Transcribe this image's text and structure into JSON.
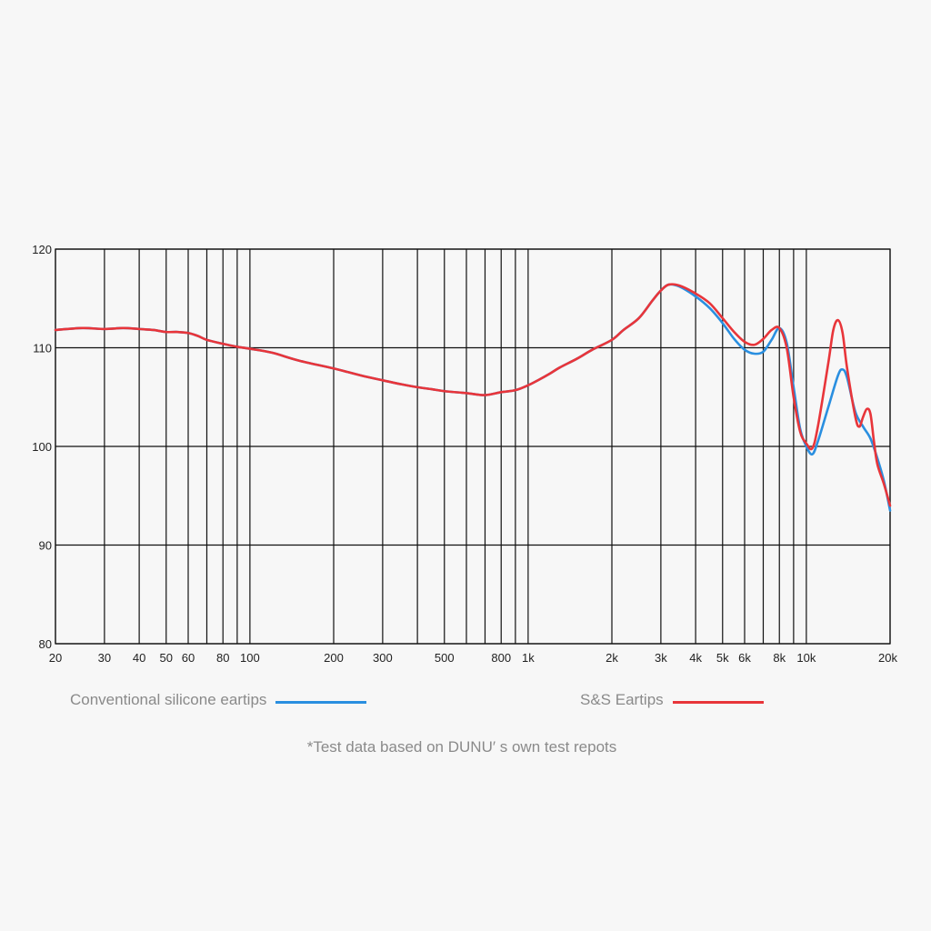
{
  "chart_data": {
    "type": "line",
    "title": "",
    "xlabel": "",
    "ylabel": "",
    "x_scale": "log",
    "xlim": [
      20,
      20000
    ],
    "ylim": [
      80,
      120
    ],
    "grid": true,
    "y_ticks": [
      80,
      90,
      100,
      110,
      120
    ],
    "y_tick_labels": [
      "80",
      "90",
      "100",
      "110",
      "120"
    ],
    "x_gridlines": [
      20,
      30,
      40,
      50,
      60,
      70,
      80,
      90,
      100,
      200,
      300,
      400,
      500,
      600,
      700,
      800,
      900,
      1000,
      2000,
      3000,
      4000,
      5000,
      6000,
      7000,
      8000,
      9000,
      10000,
      20000
    ],
    "x_ticks": [
      {
        "value": 20,
        "label": "20"
      },
      {
        "value": 30,
        "label": "30"
      },
      {
        "value": 40,
        "label": "40"
      },
      {
        "value": 50,
        "label": "50"
      },
      {
        "value": 60,
        "label": "60"
      },
      {
        "value": 80,
        "label": "80"
      },
      {
        "value": 100,
        "label": "100"
      },
      {
        "value": 200,
        "label": "200"
      },
      {
        "value": 300,
        "label": "300"
      },
      {
        "value": 500,
        "label": "500"
      },
      {
        "value": 800,
        "label": "800"
      },
      {
        "value": 1000,
        "label": "1k"
      },
      {
        "value": 2000,
        "label": "2k"
      },
      {
        "value": 3000,
        "label": "3k"
      },
      {
        "value": 4000,
        "label": "4k"
      },
      {
        "value": 5000,
        "label": "5k"
      },
      {
        "value": 6000,
        "label": "6k"
      },
      {
        "value": 8000,
        "label": "8k"
      },
      {
        "value": 10000,
        "label": "10k"
      },
      {
        "value": 20000,
        "label": "20k"
      }
    ],
    "legend_placement": "bottom",
    "series": [
      {
        "name": "Conventional silicone eartips",
        "color": "#2a8fe0",
        "points": [
          [
            20,
            111.8
          ],
          [
            25,
            112.0
          ],
          [
            30,
            111.9
          ],
          [
            35,
            112.0
          ],
          [
            40,
            111.9
          ],
          [
            45,
            111.8
          ],
          [
            50,
            111.6
          ],
          [
            55,
            111.6
          ],
          [
            60,
            111.5
          ],
          [
            65,
            111.2
          ],
          [
            70,
            110.8
          ],
          [
            80,
            110.4
          ],
          [
            90,
            110.1
          ],
          [
            100,
            109.9
          ],
          [
            120,
            109.5
          ],
          [
            150,
            108.7
          ],
          [
            200,
            107.9
          ],
          [
            250,
            107.2
          ],
          [
            300,
            106.7
          ],
          [
            350,
            106.3
          ],
          [
            400,
            106.0
          ],
          [
            450,
            105.8
          ],
          [
            500,
            105.6
          ],
          [
            600,
            105.4
          ],
          [
            700,
            105.2
          ],
          [
            800,
            105.5
          ],
          [
            900,
            105.7
          ],
          [
            1000,
            106.2
          ],
          [
            1100,
            106.8
          ],
          [
            1200,
            107.4
          ],
          [
            1300,
            108.0
          ],
          [
            1500,
            108.9
          ],
          [
            1700,
            109.8
          ],
          [
            2000,
            110.8
          ],
          [
            2200,
            111.8
          ],
          [
            2500,
            113.0
          ],
          [
            2800,
            114.8
          ],
          [
            3000,
            115.8
          ],
          [
            3200,
            116.4
          ],
          [
            3500,
            116.2
          ],
          [
            4000,
            115.2
          ],
          [
            4500,
            114.0
          ],
          [
            5000,
            112.5
          ],
          [
            5500,
            110.9
          ],
          [
            6000,
            109.8
          ],
          [
            6500,
            109.4
          ],
          [
            7000,
            109.6
          ],
          [
            7500,
            110.8
          ],
          [
            8000,
            112.0
          ],
          [
            8500,
            110.5
          ],
          [
            9000,
            106.0
          ],
          [
            9500,
            101.8
          ],
          [
            10000,
            100.0
          ],
          [
            10500,
            99.2
          ],
          [
            11000,
            100.5
          ],
          [
            12000,
            104.0
          ],
          [
            13000,
            107.2
          ],
          [
            13500,
            107.8
          ],
          [
            14000,
            107.0
          ],
          [
            15000,
            103.5
          ],
          [
            16000,
            102.0
          ],
          [
            17000,
            100.8
          ],
          [
            18000,
            98.8
          ],
          [
            19000,
            96.5
          ],
          [
            20000,
            93.5
          ]
        ]
      },
      {
        "name": "S&S Eartips",
        "color": "#e8353a",
        "points": [
          [
            20,
            111.8
          ],
          [
            25,
            112.0
          ],
          [
            30,
            111.9
          ],
          [
            35,
            112.0
          ],
          [
            40,
            111.9
          ],
          [
            45,
            111.8
          ],
          [
            50,
            111.6
          ],
          [
            55,
            111.6
          ],
          [
            60,
            111.5
          ],
          [
            65,
            111.2
          ],
          [
            70,
            110.8
          ],
          [
            80,
            110.4
          ],
          [
            90,
            110.1
          ],
          [
            100,
            109.9
          ],
          [
            120,
            109.5
          ],
          [
            150,
            108.7
          ],
          [
            200,
            107.9
          ],
          [
            250,
            107.2
          ],
          [
            300,
            106.7
          ],
          [
            350,
            106.3
          ],
          [
            400,
            106.0
          ],
          [
            450,
            105.8
          ],
          [
            500,
            105.6
          ],
          [
            600,
            105.4
          ],
          [
            700,
            105.2
          ],
          [
            800,
            105.5
          ],
          [
            900,
            105.7
          ],
          [
            1000,
            106.2
          ],
          [
            1100,
            106.8
          ],
          [
            1200,
            107.4
          ],
          [
            1300,
            108.0
          ],
          [
            1500,
            108.9
          ],
          [
            1700,
            109.8
          ],
          [
            2000,
            110.8
          ],
          [
            2200,
            111.8
          ],
          [
            2500,
            113.0
          ],
          [
            2800,
            114.8
          ],
          [
            3000,
            115.8
          ],
          [
            3200,
            116.4
          ],
          [
            3500,
            116.3
          ],
          [
            4000,
            115.5
          ],
          [
            4500,
            114.5
          ],
          [
            5000,
            113.0
          ],
          [
            5500,
            111.6
          ],
          [
            6000,
            110.6
          ],
          [
            6500,
            110.3
          ],
          [
            7000,
            110.9
          ],
          [
            7500,
            111.8
          ],
          [
            8000,
            112.0
          ],
          [
            8500,
            110.0
          ],
          [
            9000,
            105.0
          ],
          [
            9500,
            101.5
          ],
          [
            10000,
            100.3
          ],
          [
            10500,
            99.8
          ],
          [
            11000,
            102.0
          ],
          [
            12000,
            108.5
          ],
          [
            12500,
            111.8
          ],
          [
            13000,
            112.8
          ],
          [
            13500,
            111.5
          ],
          [
            14000,
            108.0
          ],
          [
            15000,
            103.0
          ],
          [
            15500,
            102.0
          ],
          [
            16000,
            103.0
          ],
          [
            16500,
            103.8
          ],
          [
            17000,
            103.3
          ],
          [
            17500,
            100.5
          ],
          [
            18000,
            98.2
          ],
          [
            19000,
            96.2
          ],
          [
            20000,
            94.0
          ]
        ]
      }
    ]
  },
  "legend": {
    "series1_label": "Conventional silicone eartips",
    "series2_label": "S&S Eartips",
    "series1_color": "#2a8fe0",
    "series2_color": "#e8353a"
  },
  "footnote": "*Test data based on DUNU′ s own test repots"
}
